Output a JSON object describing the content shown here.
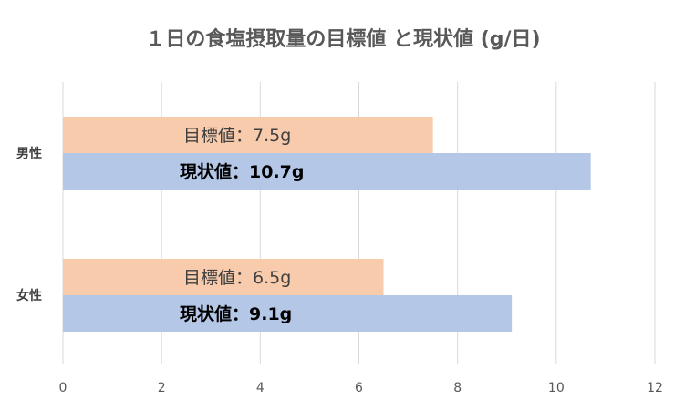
{
  "chart_data": {
    "type": "bar",
    "orientation": "horizontal",
    "title": "１日の食塩摂取量の目標値 と現状値 (g/日)",
    "categories": [
      "男性",
      "女性"
    ],
    "series": [
      {
        "key": "target",
        "color": "#F8CBAD",
        "values": [
          7.5,
          6.5
        ],
        "labels": [
          "目標値：7.5g",
          "目標値：6.5g"
        ]
      },
      {
        "key": "current",
        "color": "#B4C7E7",
        "values": [
          10.7,
          9.1
        ],
        "labels": [
          "現状値：10.7g",
          "現状値：9.1g"
        ]
      }
    ],
    "xlim": [
      0,
      12
    ],
    "xticks": [
      "0",
      "2",
      "4",
      "6",
      "8",
      "10",
      "12"
    ],
    "grid": true,
    "legend": "none"
  }
}
